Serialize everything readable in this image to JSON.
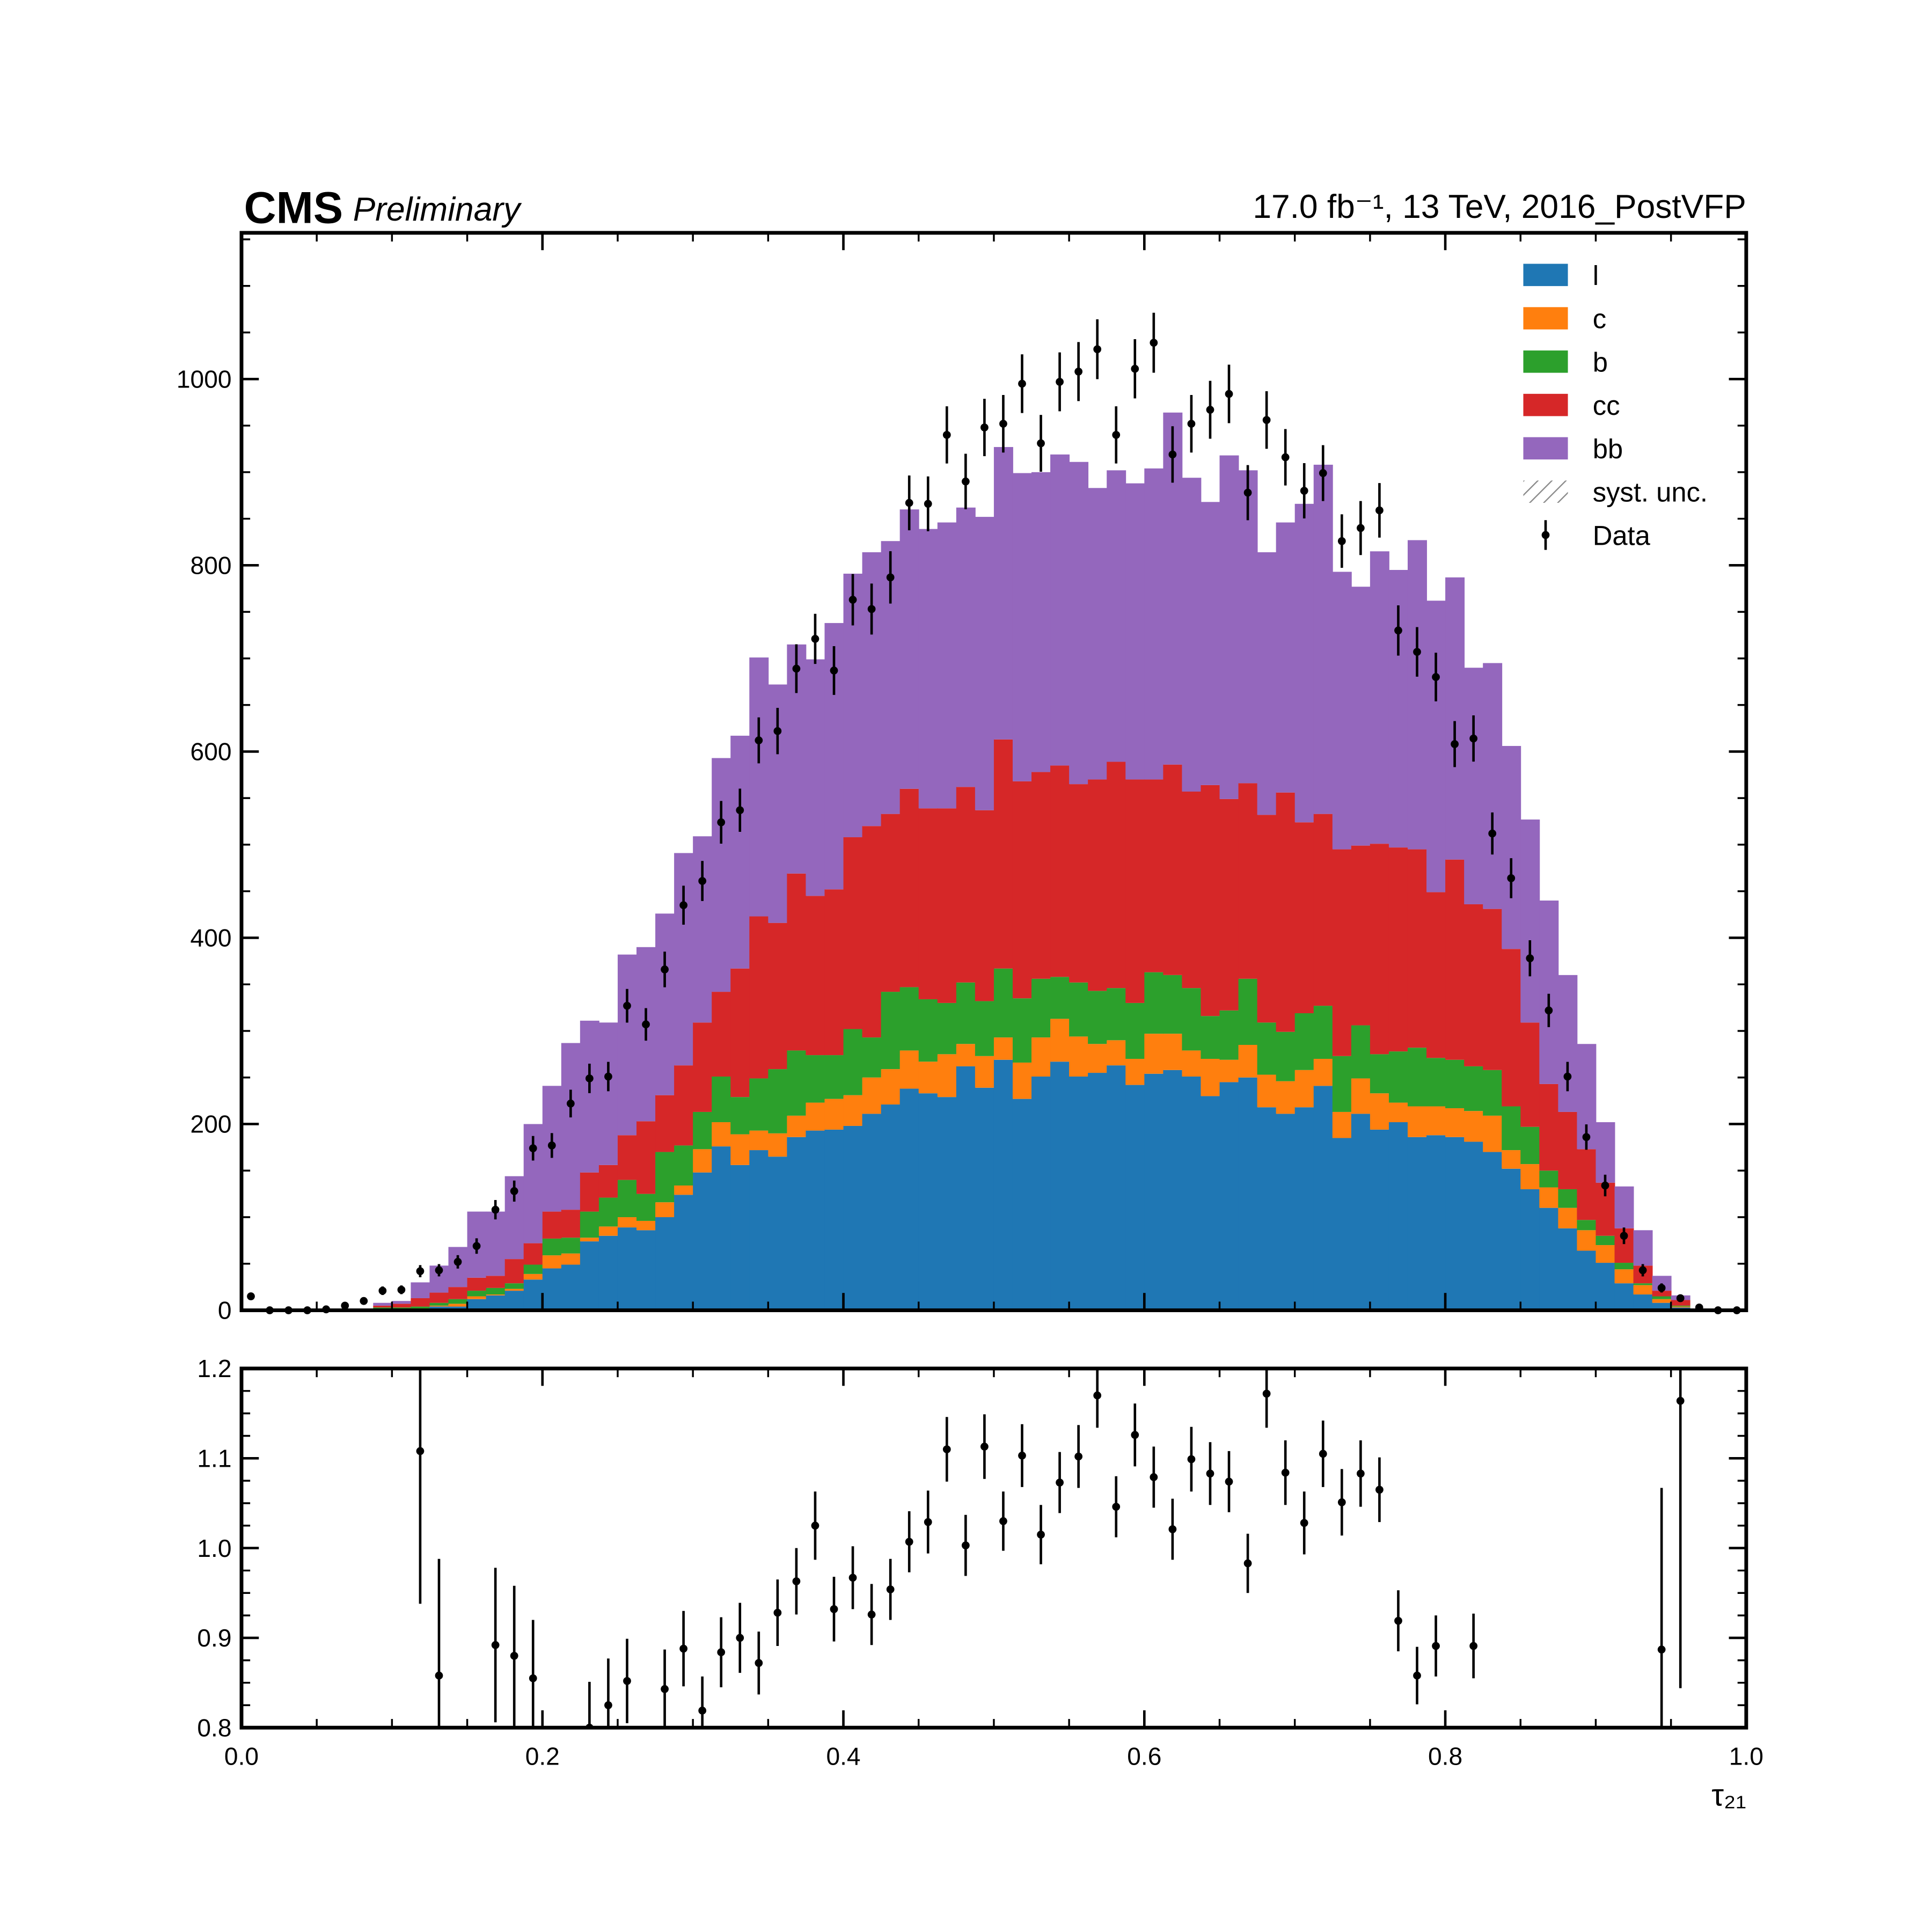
{
  "chart_data": [
    {
      "type": "stacked_histogram",
      "experiment": "CMS",
      "status": "Preliminary",
      "lumi": "17.0 fb⁻¹, 13 TeV, 2016_PostVFP",
      "bins": [
        0,
        0.0125,
        0.025,
        0.0375,
        0.05,
        0.0625,
        0.075,
        0.0875,
        0.1,
        0.1125,
        0.125,
        0.1375,
        0.15,
        0.1625,
        0.175,
        0.1875,
        0.2,
        0.2125,
        0.225,
        0.2375,
        0.25,
        0.2625,
        0.275,
        0.2875,
        0.3,
        0.3125,
        0.325,
        0.3375,
        0.35,
        0.3625,
        0.375,
        0.3875,
        0.4,
        0.4125,
        0.425,
        0.4375,
        0.45,
        0.4625,
        0.475,
        0.4875,
        0.5,
        0.5125,
        0.525,
        0.5375,
        0.55,
        0.5625,
        0.575,
        0.5875,
        0.6,
        0.6125,
        0.625,
        0.6375,
        0.65,
        0.6625,
        0.675,
        0.6875,
        0.7,
        0.7125,
        0.725,
        0.7375,
        0.75,
        0.7625,
        0.775,
        0.7875,
        0.8,
        0.8125,
        0.825,
        0.8375,
        0.85,
        0.8625,
        0.875,
        0.8875,
        0.9,
        0.9125,
        0.925,
        0.9375,
        0.95,
        0.9625,
        0.975,
        0.9875,
        1
      ],
      "series": [
        {
          "name": "l",
          "color": "#1f77b4",
          "values": [
            0,
            0,
            0,
            0,
            0,
            0,
            0,
            0,
            1,
            1,
            4,
            4,
            12,
            16,
            21,
            33,
            45,
            49,
            74,
            80,
            89,
            86,
            100,
            124,
            148,
            176,
            156,
            172,
            165,
            186,
            193,
            194,
            198,
            211,
            221,
            238,
            233,
            229,
            262,
            239,
            269,
            227,
            251,
            267,
            251,
            255,
            263,
            242,
            254,
            258,
            251,
            230,
            245,
            250,
            218,
            211,
            218,
            241,
            185,
            211,
            194,
            202,
            186,
            188,
            186,
            181,
            170,
            152,
            130,
            110,
            88,
            64,
            51,
            29,
            17,
            8,
            3,
            0,
            0,
            0
          ]
        },
        {
          "name": "c",
          "color": "#ff7f0e",
          "values": [
            0,
            0,
            0,
            0,
            0,
            0,
            0,
            1,
            0,
            1,
            1,
            3,
            3,
            1,
            2,
            6,
            14,
            12,
            4,
            10,
            11,
            10,
            16,
            10,
            25,
            26,
            33,
            21,
            25,
            23,
            30,
            33,
            33,
            39,
            38,
            41,
            34,
            46,
            24,
            34,
            24,
            39,
            42,
            46,
            43,
            31,
            27,
            28,
            43,
            39,
            28,
            40,
            24,
            35,
            35,
            35,
            40,
            29,
            28,
            38,
            39,
            21,
            33,
            31,
            31,
            33,
            39,
            20,
            27,
            22,
            22,
            22,
            19,
            15,
            10,
            4,
            1,
            0,
            0,
            0
          ]
        },
        {
          "name": "b",
          "color": "#2ca02c",
          "values": [
            0,
            0,
            0,
            0,
            0,
            0,
            0,
            2,
            2,
            2,
            3,
            5,
            6,
            7,
            6,
            10,
            18,
            17,
            28,
            31,
            40,
            29,
            54,
            43,
            40,
            49,
            40,
            56,
            69,
            70,
            51,
            47,
            71,
            43,
            83,
            68,
            67,
            55,
            66,
            59,
            74,
            69,
            63,
            45,
            58,
            57,
            56,
            60,
            66,
            63,
            67,
            46,
            53,
            71,
            56,
            53,
            61,
            57,
            60,
            57,
            42,
            55,
            63,
            52,
            52,
            48,
            49,
            47,
            40,
            18,
            20,
            11,
            10,
            7,
            2,
            3,
            1,
            0,
            0,
            0
          ]
        },
        {
          "name": "cc",
          "color": "#d62728",
          "values": [
            0,
            0,
            0,
            0,
            0,
            0,
            0,
            2,
            4,
            9,
            11,
            13,
            14,
            13,
            26,
            23,
            29,
            30,
            42,
            35,
            48,
            78,
            61,
            86,
            96,
            91,
            138,
            174,
            157,
            190,
            171,
            178,
            206,
            227,
            191,
            213,
            205,
            209,
            210,
            205,
            246,
            233,
            222,
            227,
            213,
            227,
            243,
            240,
            207,
            226,
            211,
            248,
            227,
            210,
            223,
            257,
            205,
            206,
            222,
            193,
            226,
            219,
            213,
            178,
            215,
            174,
            173,
            169,
            112,
            93,
            83,
            76,
            57,
            37,
            19,
            6,
            6,
            1,
            0,
            0
          ]
        },
        {
          "name": "bb",
          "color": "#9467bd",
          "values": [
            0,
            0,
            0,
            0,
            0,
            0,
            0,
            3,
            3,
            17,
            29,
            43,
            71,
            69,
            89,
            128,
            135,
            179,
            163,
            153,
            194,
            187,
            195,
            228,
            200,
            251,
            250,
            278,
            256,
            246,
            254,
            286,
            283,
            294,
            293,
            300,
            300,
            307,
            300,
            315,
            314,
            331,
            322,
            334,
            346,
            313,
            313,
            318,
            334,
            378,
            337,
            304,
            369,
            336,
            282,
            290,
            342,
            375,
            298,
            278,
            314,
            298,
            332,
            313,
            303,
            254,
            264,
            218,
            218,
            197,
            147,
            113,
            65,
            45,
            38,
            16,
            5,
            0,
            0,
            0
          ]
        }
      ],
      "uncertainty": {
        "name": "syst. unc.",
        "color": "#888888"
      },
      "data": {
        "name": "Data",
        "color": "#000000",
        "values": [
          15,
          0,
          0,
          0,
          1,
          5,
          10,
          21,
          22,
          42,
          43,
          52,
          69,
          108,
          128,
          174,
          177,
          222,
          249,
          251,
          327,
          307,
          366,
          435,
          461,
          524,
          537,
          612,
          622,
          689,
          721,
          687,
          763,
          753,
          787,
          867,
          866,
          940,
          890,
          948,
          952,
          995,
          931,
          997,
          1008,
          1032,
          940,
          1011,
          1039,
          919,
          952,
          967,
          984,
          878,
          956,
          916,
          880,
          899,
          826,
          840,
          859,
          730,
          707,
          680,
          608,
          614,
          512,
          464,
          378,
          322,
          251,
          186,
          134,
          80,
          43,
          24,
          13,
          3,
          0,
          0
        ],
        "errors": [
          3.9,
          0,
          0,
          0,
          1,
          2.2,
          3.2,
          4.6,
          4.7,
          6.5,
          6.6,
          7.2,
          8.3,
          10.4,
          11.3,
          13.2,
          13.3,
          14.9,
          15.8,
          15.8,
          18.1,
          17.5,
          19.1,
          20.9,
          21.5,
          22.9,
          23.2,
          24.7,
          24.9,
          26.2,
          26.9,
          26.2,
          27.6,
          27.4,
          28.1,
          29.4,
          29.4,
          30.7,
          29.8,
          30.8,
          30.9,
          31.5,
          30.5,
          31.6,
          31.7,
          32.1,
          30.7,
          31.8,
          32.2,
          30.3,
          30.9,
          31.1,
          31.4,
          29.6,
          30.9,
          30.3,
          29.7,
          30,
          28.7,
          29,
          29.3,
          27,
          26.6,
          26.1,
          24.7,
          24.8,
          22.6,
          21.5,
          19.4,
          17.9,
          15.8,
          13.6,
          11.6,
          8.9,
          6.6,
          4.9,
          3.6,
          1.7,
          0,
          0
        ]
      },
      "xlim": [
        0,
        1
      ],
      "ylim": [
        0,
        1157
      ],
      "yticks": [
        0,
        200,
        400,
        600,
        800,
        1000
      ],
      "legend": "upper right"
    },
    {
      "type": "ratio",
      "values": [
        null,
        null,
        null,
        null,
        null,
        null,
        null,
        null,
        null,
        1.108,
        0.858,
        null,
        null,
        0.892,
        0.88,
        0.855,
        null,
        null,
        0.8,
        0.825,
        0.852,
        null,
        0.843,
        0.888,
        0.819,
        0.884,
        0.9,
        0.872,
        0.928,
        0.963,
        1.025,
        0.932,
        0.967,
        0.926,
        0.954,
        1.007,
        1.029,
        1.11,
        1.003,
        1.113,
        1.03,
        1.103,
        1.015,
        1.073,
        1.102,
        1.17,
        1.046,
        1.126,
        1.079,
        1.021,
        1.099,
        1.083,
        1.074,
        0.983,
        1.172,
        1.084,
        1.028,
        1.105,
        1.051,
        1.083,
        1.065,
        0.919,
        0.858,
        0.891,
        null,
        0.891,
        null,
        null,
        null,
        null,
        null,
        null,
        null,
        null,
        null,
        0.887,
        1.164,
        null,
        null,
        null
      ],
      "errors": [
        null,
        null,
        null,
        null,
        null,
        null,
        null,
        null,
        null,
        0.17,
        0.13,
        null,
        null,
        0.086,
        0.078,
        0.065,
        null,
        null,
        0.051,
        0.052,
        0.047,
        null,
        0.044,
        0.042,
        0.038,
        0.039,
        0.039,
        0.035,
        0.037,
        0.037,
        0.038,
        0.036,
        0.035,
        0.034,
        0.034,
        0.034,
        0.035,
        0.036,
        0.034,
        0.036,
        0.033,
        0.035,
        0.033,
        0.034,
        0.035,
        0.036,
        0.034,
        0.035,
        0.034,
        0.034,
        0.036,
        0.035,
        0.034,
        0.033,
        0.038,
        0.036,
        0.035,
        0.037,
        0.037,
        0.037,
        0.036,
        0.034,
        0.032,
        0.034,
        null,
        0.036,
        null,
        null,
        null,
        null,
        null,
        null,
        null,
        null,
        null,
        0.18,
        0.32,
        null,
        null,
        null
      ],
      "color": "#000000",
      "xlabel": "τ₂₁",
      "xlim": [
        0,
        1
      ],
      "xticks": [
        {
          "value": 0,
          "label": "0.0"
        },
        0.2,
        0.4,
        0.6,
        0.8,
        {
          "value": 1,
          "label": "1.0"
        }
      ],
      "ylim": [
        0.8,
        1.2
      ],
      "yticks": [
        0.8,
        0.9,
        {
          "value": 1,
          "label": "1.0"
        },
        1.1,
        1.2
      ]
    }
  ]
}
